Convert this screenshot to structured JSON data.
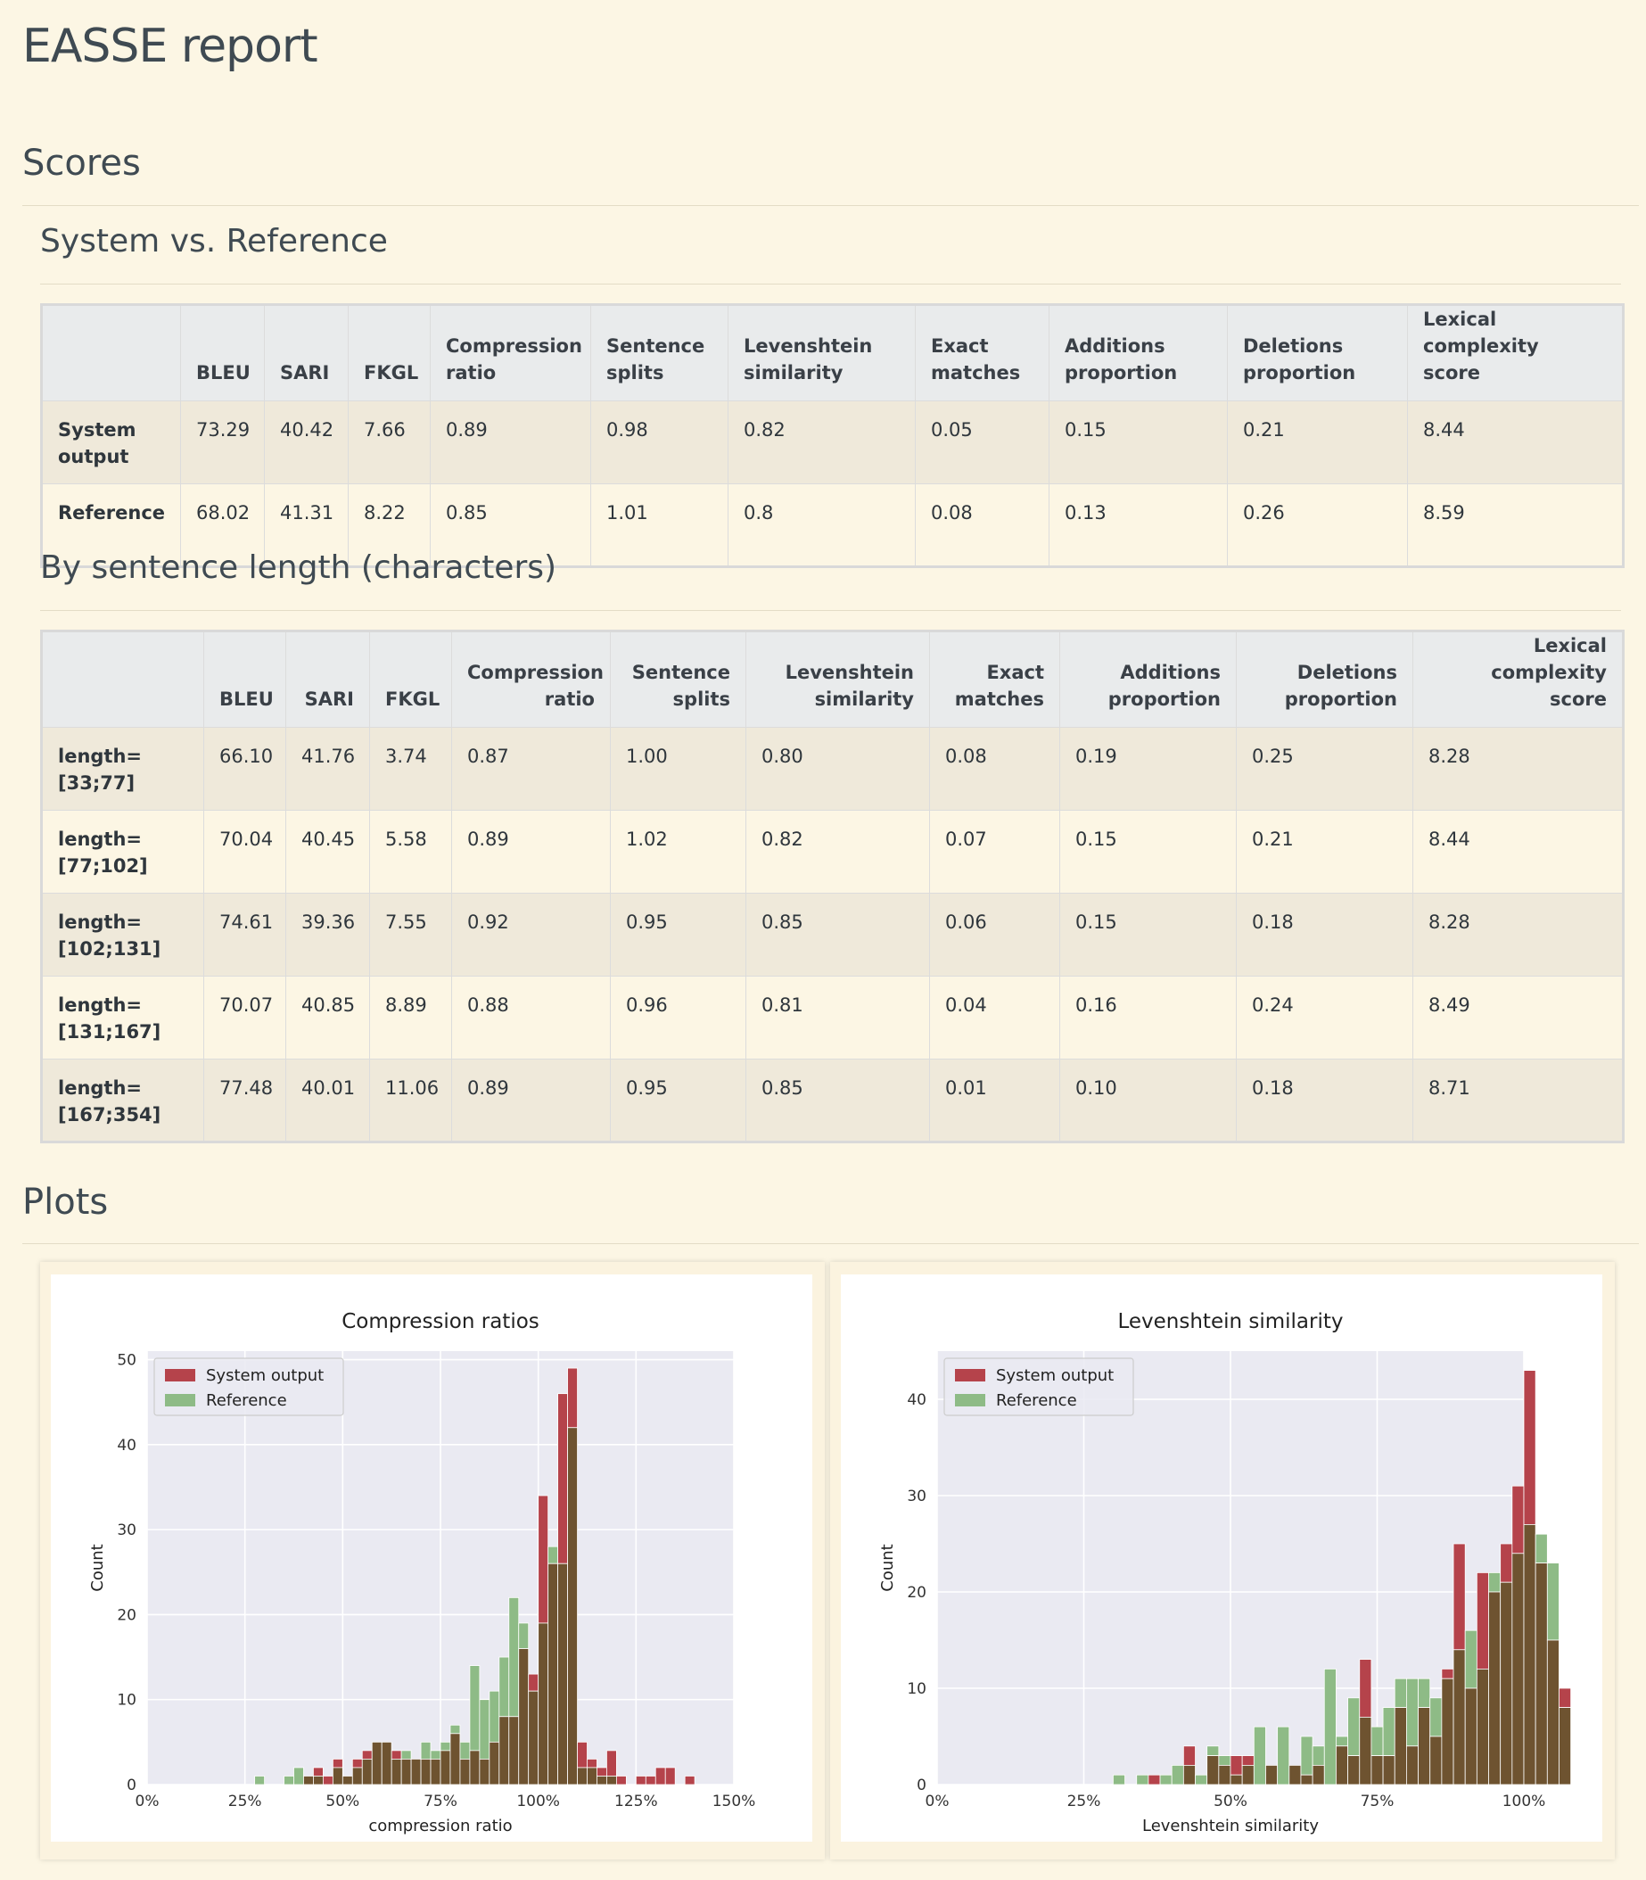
{
  "title": "EASSE report",
  "sections": {
    "scores": "Scores",
    "sys_vs_ref": "System vs. Reference",
    "by_length": "By sentence length (characters)",
    "plots": "Plots"
  },
  "table1": {
    "headers": [
      "",
      "BLEU",
      "SARI",
      "FKGL",
      "Compression\nratio",
      "Sentence\nsplits",
      "Levenshtein\nsimilarity",
      "Exact\nmatches",
      "Additions\nproportion",
      "Deletions\nproportion",
      "Lexical complexity\nscore"
    ],
    "rows": [
      {
        "label": "System\noutput",
        "values": [
          "73.29",
          "40.42",
          "7.66",
          "0.89",
          "0.98",
          "0.82",
          "0.05",
          "0.15",
          "0.21",
          "8.44"
        ]
      },
      {
        "label": "Reference",
        "values": [
          "68.02",
          "41.31",
          "8.22",
          "0.85",
          "1.01",
          "0.8",
          "0.08",
          "0.13",
          "0.26",
          "8.59"
        ]
      }
    ]
  },
  "table2": {
    "headers": [
      "",
      "BLEU",
      "SARI",
      "FKGL",
      "Compression\nratio",
      "Sentence\nsplits",
      "Levenshtein\nsimilarity",
      "Exact\nmatches",
      "Additions\nproportion",
      "Deletions\nproportion",
      "Lexical\ncomplexity score"
    ],
    "rows": [
      {
        "label": "length=\n[33;77]",
        "values": [
          "66.10",
          "41.76",
          "3.74",
          "0.87",
          "1.00",
          "0.80",
          "0.08",
          "0.19",
          "0.25",
          "8.28"
        ]
      },
      {
        "label": "length=\n[77;102]",
        "values": [
          "70.04",
          "40.45",
          "5.58",
          "0.89",
          "1.02",
          "0.82",
          "0.07",
          "0.15",
          "0.21",
          "8.44"
        ]
      },
      {
        "label": "length=\n[102;131]",
        "values": [
          "74.61",
          "39.36",
          "7.55",
          "0.92",
          "0.95",
          "0.85",
          "0.06",
          "0.15",
          "0.18",
          "8.28"
        ]
      },
      {
        "label": "length=\n[131;167]",
        "values": [
          "70.07",
          "40.85",
          "8.89",
          "0.88",
          "0.96",
          "0.81",
          "0.04",
          "0.16",
          "0.24",
          "8.49"
        ]
      },
      {
        "label": "length=\n[167;354]",
        "values": [
          "77.48",
          "40.01",
          "11.06",
          "0.89",
          "0.95",
          "0.85",
          "0.01",
          "0.10",
          "0.18",
          "8.71"
        ]
      }
    ]
  },
  "colors": {
    "system": "#b5434b",
    "reference": "#8ebb86",
    "overlap": "#6e5330",
    "plot_bg": "#eaeaf2"
  },
  "chart_data": [
    {
      "type": "bar",
      "title": "Compression ratios",
      "xlabel": "compression ratio",
      "ylabel": "Count",
      "xlim": [
        0,
        150
      ],
      "ylim": [
        0,
        51
      ],
      "xticks": [
        "0%",
        "25%",
        "50%",
        "75%",
        "100%",
        "125%",
        "150%"
      ],
      "yticks": [
        "0",
        "10",
        "20",
        "30",
        "40",
        "50"
      ],
      "legend": "top-left",
      "bin_width": 2.5,
      "bin_start": 27.5,
      "series": [
        {
          "name": "System output",
          "values": [
            0,
            0,
            0,
            0,
            0,
            1,
            2,
            1,
            3,
            1,
            3,
            4,
            5,
            5,
            4,
            3,
            3,
            3,
            3,
            4,
            6,
            3,
            4,
            3,
            5,
            8,
            8,
            16,
            13,
            34,
            26,
            46,
            49,
            5,
            3,
            2,
            4,
            1,
            0,
            1,
            1,
            2,
            2,
            0,
            1
          ]
        },
        {
          "name": "Reference",
          "values": [
            1,
            0,
            0,
            1,
            2,
            1,
            1,
            0,
            2,
            1,
            2,
            3,
            5,
            5,
            3,
            4,
            3,
            5,
            4,
            5,
            7,
            5,
            14,
            10,
            11,
            15,
            22,
            19,
            11,
            19,
            28,
            26,
            42,
            2,
            2,
            1,
            1,
            0,
            0,
            0,
            0,
            0,
            0,
            0,
            0
          ]
        }
      ]
    },
    {
      "type": "bar",
      "title": "Levenshtein similarity",
      "xlabel": "Levenshtein similarity",
      "ylabel": "Count",
      "xlim": [
        0,
        100
      ],
      "ylim": [
        0,
        45
      ],
      "xticks": [
        "0%",
        "25%",
        "50%",
        "75%",
        "100%"
      ],
      "yticks": [
        "0",
        "10",
        "20",
        "30",
        "40"
      ],
      "legend": "top-left",
      "bin_width": 2,
      "bin_start": 30,
      "series": [
        {
          "name": "System output",
          "values": [
            0,
            0,
            0,
            1,
            0,
            0,
            4,
            0,
            3,
            2,
            3,
            3,
            0,
            2,
            0,
            2,
            1,
            2,
            0,
            4,
            3,
            13,
            3,
            3,
            8,
            4,
            8,
            5,
            12,
            25,
            10,
            22,
            20,
            25,
            31,
            43,
            23,
            15,
            10
          ]
        },
        {
          "name": "Reference",
          "values": [
            1,
            0,
            1,
            0,
            1,
            2,
            2,
            1,
            4,
            3,
            1,
            2,
            6,
            2,
            6,
            2,
            5,
            4,
            12,
            5,
            9,
            7,
            6,
            8,
            11,
            11,
            11,
            9,
            11,
            14,
            16,
            12,
            22,
            21,
            24,
            27,
            26,
            23,
            8
          ]
        }
      ]
    }
  ]
}
